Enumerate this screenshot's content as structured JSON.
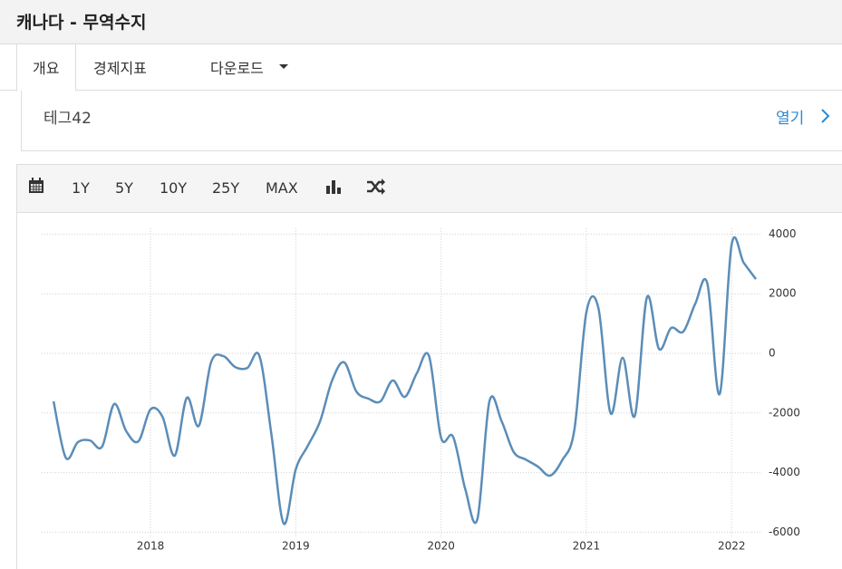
{
  "header": {
    "title": "캐나다 - 무역수지"
  },
  "tabs": [
    "개요",
    "경제지표",
    "다운로드"
  ],
  "panel": {
    "label": "테그42",
    "link": "열기"
  },
  "toolbar": {
    "buttons": [
      "1Y",
      "5Y",
      "10Y",
      "25Y",
      "MAX"
    ]
  },
  "chart_data": {
    "type": "line",
    "x": [
      2017.333,
      2017.417,
      2017.5,
      2017.583,
      2017.667,
      2017.75,
      2017.833,
      2017.917,
      2018,
      2018.083,
      2018.167,
      2018.25,
      2018.333,
      2018.417,
      2018.5,
      2018.583,
      2018.667,
      2018.75,
      2018.833,
      2018.917,
      2019,
      2019.083,
      2019.167,
      2019.25,
      2019.333,
      2019.417,
      2019.5,
      2019.583,
      2019.667,
      2019.75,
      2019.833,
      2019.917,
      2020,
      2020.083,
      2020.167,
      2020.25,
      2020.333,
      2020.417,
      2020.5,
      2020.583,
      2020.667,
      2020.75,
      2020.833,
      2020.917,
      2021,
      2021.083,
      2021.167,
      2021.25,
      2021.333,
      2021.417,
      2021.5,
      2021.583,
      2021.667,
      2021.75,
      2021.833,
      2021.917,
      2022,
      2022.083,
      2022.167
    ],
    "series": [
      {
        "color": "#5b8db8",
        "values": [
          -1610,
          -3500,
          -2980,
          -2920,
          -3130,
          -1700,
          -2610,
          -2950,
          -1880,
          -2130,
          -3430,
          -1490,
          -2430,
          -300,
          -90,
          -460,
          -490,
          -90,
          -2740,
          -5710,
          -3890,
          -3100,
          -2280,
          -910,
          -300,
          -1280,
          -1520,
          -1610,
          -910,
          -1460,
          -670,
          -90,
          -2830,
          -2800,
          -4560,
          -5560,
          -1610,
          -2280,
          -3310,
          -3560,
          -3800,
          -4100,
          -3590,
          -2580,
          1370,
          1520,
          -2010,
          -150,
          -2100,
          1880,
          150,
          850,
          730,
          1670,
          2340,
          -1370,
          3650,
          3040,
          2490
        ]
      }
    ],
    "xlim": [
      2017.25,
      2022.2
    ],
    "xticks": [
      2018,
      2019,
      2020,
      2021,
      2022
    ],
    "ylim": [
      -6200,
      4200
    ],
    "yticks": [
      -6000,
      -4000,
      -2000,
      0,
      2000,
      4000
    ],
    "grid": true
  }
}
